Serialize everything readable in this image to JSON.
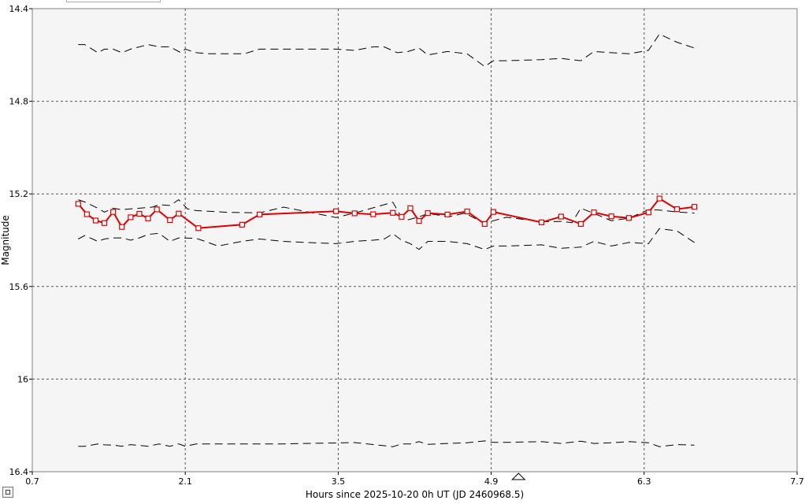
{
  "chart_data": {
    "type": "line",
    "xlabel": "Hours since 2025-10-20 0h UT (JD 2460968.5)",
    "ylabel": "Magnitude",
    "xlim": [
      0.7,
      7.7
    ],
    "ylim": [
      14.4,
      16.4
    ],
    "y_inverted": true,
    "x_ticks": [
      "0.7",
      "2.1",
      "3.5",
      "4.9",
      "6.3",
      "7.7"
    ],
    "y_ticks": [
      "14.4",
      "14.8",
      "15.2",
      "15.6",
      "16",
      "16.4"
    ],
    "grid": true,
    "marker_at_x": 5.15,
    "target": {
      "color": "#e00000",
      "x": [
        1.12,
        1.2,
        1.28,
        1.36,
        1.44,
        1.52,
        1.6,
        1.68,
        1.76,
        1.84,
        1.96,
        2.04,
        2.22,
        2.62,
        2.78,
        3.48,
        3.65,
        3.82,
        4.0,
        4.08,
        4.16,
        4.24,
        4.32,
        4.5,
        4.68,
        4.84,
        4.92,
        5.36,
        5.54,
        5.72,
        5.84,
        6.0,
        6.16,
        6.34,
        6.44,
        6.6,
        6.76
      ],
      "y": [
        15.243,
        15.288,
        15.315,
        15.326,
        15.278,
        15.343,
        15.301,
        15.286,
        15.306,
        15.267,
        15.313,
        15.285,
        15.348,
        15.333,
        15.289,
        15.275,
        15.284,
        15.288,
        15.282,
        15.299,
        15.262,
        15.317,
        15.283,
        15.289,
        15.276,
        15.33,
        15.278,
        15.323,
        15.298,
        15.33,
        15.28,
        15.297,
        15.304,
        15.28,
        15.22,
        15.266,
        15.256
      ]
    },
    "comparison_stars": [
      {
        "x": [
          1.12,
          1.18,
          1.3,
          1.36,
          1.44,
          1.52,
          1.6,
          1.76,
          1.86,
          1.96,
          2.06,
          2.1,
          2.2,
          2.32,
          2.42,
          2.64,
          2.78,
          3.0,
          3.2,
          3.48,
          3.65,
          3.82,
          3.92,
          4.04,
          4.14,
          4.24,
          4.32,
          4.5,
          4.68,
          4.84,
          4.92,
          5.04,
          5.36,
          5.54,
          5.72,
          5.84,
          6.0,
          6.16,
          6.34,
          6.44,
          6.6,
          6.76
        ],
        "y": [
          14.555,
          14.555,
          14.59,
          14.575,
          14.575,
          14.59,
          14.575,
          14.555,
          14.565,
          14.565,
          14.59,
          14.575,
          14.59,
          14.595,
          14.595,
          14.595,
          14.575,
          14.575,
          14.575,
          14.575,
          14.58,
          14.565,
          14.565,
          14.59,
          14.585,
          14.57,
          14.6,
          14.585,
          14.595,
          14.65,
          14.625,
          14.625,
          14.62,
          14.615,
          14.625,
          14.585,
          14.59,
          14.595,
          14.58,
          14.51,
          14.545,
          14.57
        ]
      },
      {
        "x": [
          1.12,
          1.18,
          1.3,
          1.36,
          1.44,
          1.52,
          1.6,
          1.68,
          1.8,
          1.86,
          1.96,
          2.04,
          2.12,
          2.2,
          2.5,
          2.78,
          3.0,
          3.48,
          3.65,
          4.0,
          4.08,
          4.14,
          4.24,
          4.32,
          4.4,
          4.52,
          4.66,
          4.84,
          4.92,
          5.04,
          5.36,
          5.54,
          5.64,
          5.72,
          5.84,
          6.0,
          6.16,
          6.34,
          6.44,
          6.6,
          6.76
        ],
        "y": [
          15.225,
          15.235,
          15.262,
          15.279,
          15.262,
          15.268,
          15.265,
          15.262,
          15.257,
          15.247,
          15.25,
          15.225,
          15.265,
          15.272,
          15.28,
          15.282,
          15.257,
          15.302,
          15.283,
          15.236,
          15.303,
          15.312,
          15.299,
          15.285,
          15.29,
          15.298,
          15.283,
          15.328,
          15.316,
          15.301,
          15.32,
          15.319,
          15.324,
          15.262,
          15.284,
          15.316,
          15.305,
          15.268,
          15.27,
          15.278,
          15.283
        ]
      },
      {
        "x": [
          1.12,
          1.18,
          1.3,
          1.36,
          1.44,
          1.52,
          1.6,
          1.68,
          1.76,
          1.86,
          1.96,
          2.04,
          2.2,
          2.4,
          2.62,
          2.78,
          3.0,
          3.2,
          3.48,
          3.65,
          3.82,
          3.92,
          4.0,
          4.08,
          4.16,
          4.24,
          4.32,
          4.5,
          4.68,
          4.84,
          4.92,
          5.04,
          5.36,
          5.54,
          5.72,
          5.84,
          6.0,
          6.16,
          6.34,
          6.44,
          6.6,
          6.76
        ],
        "y": [
          15.395,
          15.38,
          15.405,
          15.395,
          15.39,
          15.39,
          15.4,
          15.39,
          15.375,
          15.37,
          15.405,
          15.39,
          15.392,
          15.425,
          15.405,
          15.395,
          15.405,
          15.41,
          15.415,
          15.405,
          15.4,
          15.395,
          15.372,
          15.4,
          15.415,
          15.44,
          15.405,
          15.405,
          15.415,
          15.44,
          15.425,
          15.425,
          15.42,
          15.435,
          15.43,
          15.405,
          15.425,
          15.41,
          15.415,
          15.35,
          15.36,
          15.41
        ]
      },
      {
        "x": [
          1.12,
          1.18,
          1.3,
          1.36,
          1.44,
          1.52,
          1.6,
          1.76,
          1.86,
          1.96,
          2.04,
          2.1,
          2.2,
          3.0,
          3.2,
          3.48,
          3.65,
          4.0,
          4.08,
          4.16,
          4.24,
          4.32,
          4.5,
          4.68,
          4.84,
          4.92,
          5.04,
          5.36,
          5.54,
          5.72,
          5.84,
          6.0,
          6.16,
          6.34,
          6.44,
          6.6,
          6.76
        ],
        "y": [
          16.29,
          16.29,
          16.28,
          16.284,
          16.285,
          16.29,
          16.283,
          16.29,
          16.28,
          16.29,
          16.28,
          16.29,
          16.28,
          16.28,
          16.278,
          16.276,
          16.274,
          16.292,
          16.28,
          16.28,
          16.27,
          16.282,
          16.278,
          16.275,
          16.267,
          16.273,
          16.273,
          16.27,
          16.278,
          16.268,
          16.278,
          16.275,
          16.27,
          16.275,
          16.292,
          16.283,
          16.285
        ]
      }
    ]
  }
}
